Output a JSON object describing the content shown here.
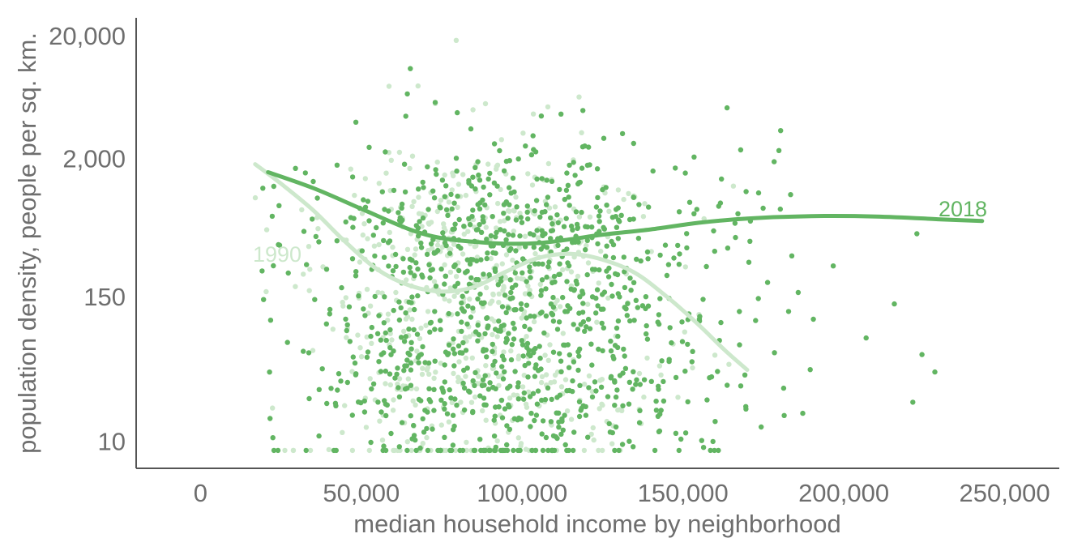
{
  "chart_data": {
    "type": "scatter",
    "xlabel": "median household income by neighborhood",
    "ylabel": "population density, people per sq. km.",
    "x_ticks": [
      0,
      50000,
      100000,
      150000,
      200000,
      250000
    ],
    "x_tick_labels": [
      "0",
      "50,000",
      "100,000",
      "150,000",
      "200,000",
      "250,000"
    ],
    "y_scale": "log",
    "y_ticks": [
      10,
      150,
      2000,
      20000
    ],
    "y_tick_labels": [
      "10",
      "150",
      "2,000",
      "20,000"
    ],
    "xlim": [
      -20000,
      267000
    ],
    "ylim": [
      6,
      28000
    ],
    "grid": false,
    "series": [
      {
        "name": "1990",
        "color": "#cde8cc",
        "trend": [
          [
            17000,
            1800
          ],
          [
            25000,
            1250
          ],
          [
            35000,
            760
          ],
          [
            45000,
            420
          ],
          [
            55000,
            250
          ],
          [
            65000,
            185
          ],
          [
            75000,
            165
          ],
          [
            85000,
            180
          ],
          [
            95000,
            240
          ],
          [
            105000,
            310
          ],
          [
            115000,
            335
          ],
          [
            125000,
            300
          ],
          [
            135000,
            235
          ],
          [
            145000,
            150
          ],
          [
            155000,
            88
          ],
          [
            163000,
            55
          ],
          [
            170000,
            38
          ]
        ],
        "point_count": 560,
        "seed": 1990
      },
      {
        "name": "2018",
        "color": "#62b562",
        "trend": [
          [
            21000,
            1550
          ],
          [
            35000,
            1150
          ],
          [
            50000,
            780
          ],
          [
            65000,
            530
          ],
          [
            75000,
            450
          ],
          [
            85000,
            420
          ],
          [
            95000,
            405
          ],
          [
            105000,
            410
          ],
          [
            115000,
            440
          ],
          [
            125000,
            480
          ],
          [
            140000,
            530
          ],
          [
            155000,
            600
          ],
          [
            170000,
            650
          ],
          [
            190000,
            680
          ],
          [
            210000,
            675
          ],
          [
            230000,
            640
          ],
          [
            243000,
            620
          ]
        ],
        "point_count": 1100,
        "seed": 2018
      }
    ]
  }
}
